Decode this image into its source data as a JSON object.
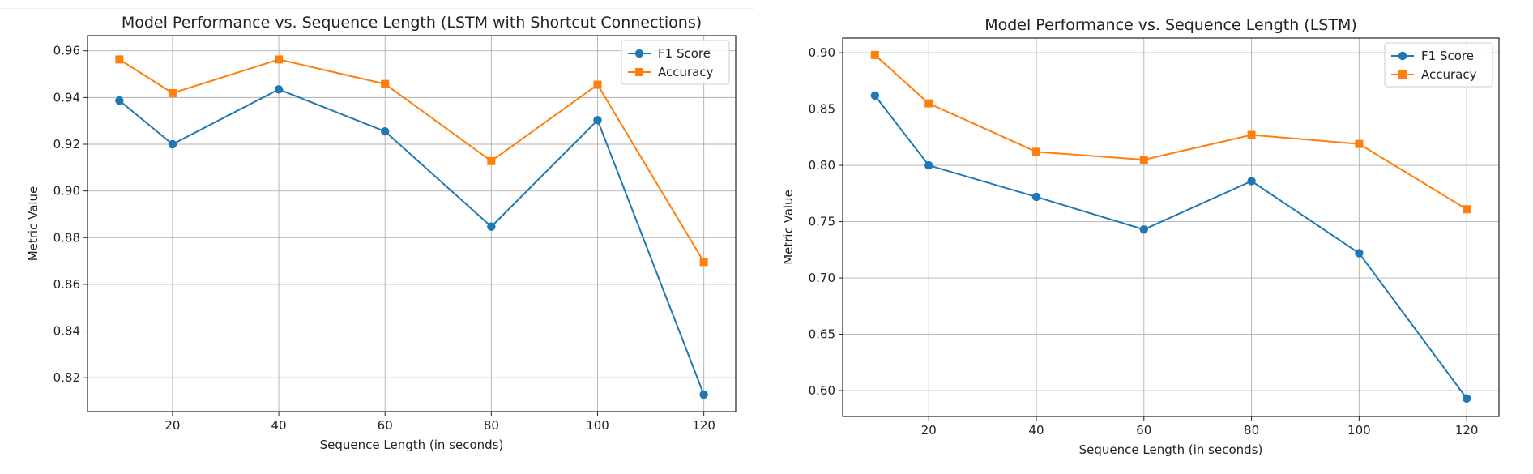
{
  "chart_data": [
    {
      "type": "line",
      "title": "Model Performance vs. Sequence Length (LSTM with Shortcut Connections)",
      "xlabel": "Sequence Length (in seconds)",
      "ylabel": "Metric Value",
      "xlim": [
        4,
        126
      ],
      "ylim": [
        0.8055,
        0.9665
      ],
      "xticks": [
        20,
        40,
        60,
        80,
        100,
        120
      ],
      "xtick_labels": [
        "20",
        "40",
        "60",
        "80",
        "100",
        "120"
      ],
      "yticks": [
        0.82,
        0.84,
        0.86,
        0.88,
        0.9,
        0.92,
        0.94,
        0.96
      ],
      "ytick_labels": [
        "0.82",
        "0.84",
        "0.86",
        "0.88",
        "0.90",
        "0.92",
        "0.94",
        "0.96"
      ],
      "grid": true,
      "legend_position": "top-right",
      "x": [
        10,
        20,
        40,
        60,
        80,
        100,
        120
      ],
      "series": [
        {
          "name": "F1 Score",
          "marker": "circle",
          "color": "#1f77b4",
          "values": [
            0.9387,
            0.92,
            0.9435,
            0.9255,
            0.8847,
            0.9303,
            0.8128
          ]
        },
        {
          "name": "Accuracy",
          "marker": "square",
          "color": "#ff7f0e",
          "values": [
            0.9563,
            0.9419,
            0.9563,
            0.9458,
            0.9128,
            0.9455,
            0.8696
          ]
        }
      ]
    },
    {
      "type": "line",
      "title": "Model Performance vs. Sequence Length (LSTM)",
      "xlabel": "Sequence Length (in seconds)",
      "ylabel": "Metric Value",
      "xlim": [
        4,
        126
      ],
      "ylim": [
        0.577,
        0.913
      ],
      "xticks": [
        20,
        40,
        60,
        80,
        100,
        120
      ],
      "xtick_labels": [
        "20",
        "40",
        "60",
        "80",
        "100",
        "120"
      ],
      "yticks": [
        0.6,
        0.65,
        0.7,
        0.75,
        0.8,
        0.85,
        0.9
      ],
      "ytick_labels": [
        "0.60",
        "0.65",
        "0.70",
        "0.75",
        "0.80",
        "0.85",
        "0.90"
      ],
      "grid": true,
      "legend_position": "top-right",
      "x": [
        10,
        20,
        40,
        60,
        80,
        100,
        120
      ],
      "series": [
        {
          "name": "F1 Score",
          "marker": "circle",
          "color": "#1f77b4",
          "values": [
            0.862,
            0.8,
            0.772,
            0.743,
            0.786,
            0.722,
            0.593
          ]
        },
        {
          "name": "Accuracy",
          "marker": "square",
          "color": "#ff7f0e",
          "values": [
            0.898,
            0.855,
            0.812,
            0.805,
            0.827,
            0.819,
            0.761
          ]
        }
      ]
    }
  ]
}
